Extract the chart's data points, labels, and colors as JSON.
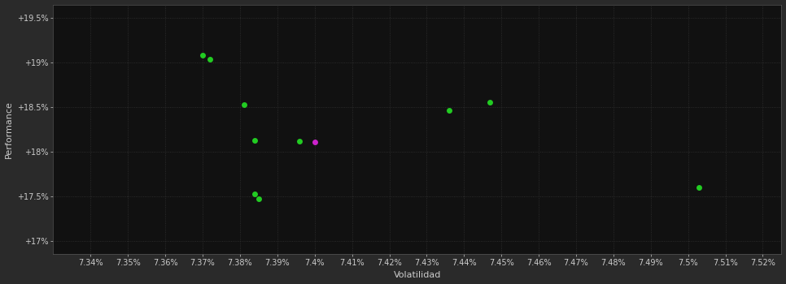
{
  "background_color": "#2a2a2a",
  "plot_bg_color": "#111111",
  "grid_color": "#333333",
  "xlabel": "Volatilidad",
  "ylabel": "Performance",
  "xlim": [
    7.33,
    7.525
  ],
  "ylim": [
    16.85,
    19.65
  ],
  "ytick_values": [
    17.0,
    17.5,
    18.0,
    18.5,
    19.0,
    19.5
  ],
  "ytick_labels": [
    "+17%",
    "+17.5%",
    "+18%",
    "+18.5%",
    "+19%",
    "+19.5%"
  ],
  "xtick_values": [
    7.34,
    7.35,
    7.36,
    7.37,
    7.38,
    7.39,
    7.4,
    7.41,
    7.42,
    7.43,
    7.44,
    7.45,
    7.46,
    7.47,
    7.48,
    7.49,
    7.5,
    7.51,
    7.52
  ],
  "xtick_labels": [
    "7.34%",
    "7.35%",
    "7.36%",
    "7.37%",
    "7.38%",
    "7.39%",
    "7.4%",
    "7.41%",
    "7.42%",
    "7.43%",
    "7.44%",
    "7.45%",
    "7.46%",
    "7.47%",
    "7.48%",
    "7.49%",
    "7.5%",
    "7.51%",
    "7.52%"
  ],
  "green_points": [
    [
      7.37,
      19.08
    ],
    [
      7.372,
      19.04
    ],
    [
      7.381,
      18.53
    ],
    [
      7.384,
      18.13
    ],
    [
      7.384,
      17.53
    ],
    [
      7.385,
      17.47
    ],
    [
      7.396,
      18.12
    ],
    [
      7.436,
      18.46
    ],
    [
      7.447,
      18.55
    ],
    [
      7.503,
      17.6
    ]
  ],
  "magenta_points": [
    [
      7.4,
      18.11
    ]
  ],
  "dot_size": 25,
  "green_color": "#22cc22",
  "magenta_color": "#cc22cc",
  "text_color": "#cccccc",
  "label_fontsize": 8,
  "tick_fontsize": 7
}
